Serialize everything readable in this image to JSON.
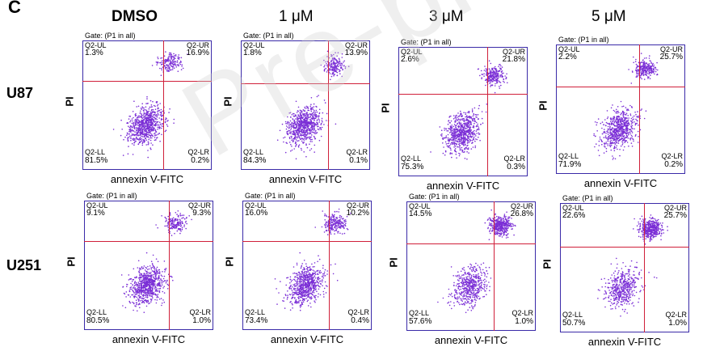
{
  "panel_letter": "C",
  "columns": [
    "DMSO",
    "1 μM",
    "3 μM",
    "5 μM"
  ],
  "rows": [
    "U87",
    "U251"
  ],
  "gate_text": "Gate: (P1 in all)",
  "quadrant_labels": {
    "ul": "Q2-UL",
    "ur": "Q2-UR",
    "ll": "Q2-LL",
    "lr": "Q2-LR"
  },
  "x_axis_label": "annexin V-FITC",
  "y_axis_label": "PI",
  "watermark": "Pre-proofs",
  "colors": {
    "dots": "#7b2fd6",
    "gate": "#d0203a",
    "frame": "#3a2aa8"
  },
  "plots": [
    {
      "row": "U87",
      "condition": "DMSO",
      "ul": "1.3%",
      "ur": "16.9%",
      "ll": "81.5%",
      "lr": "0.2%"
    },
    {
      "row": "U87",
      "condition": "1 μM",
      "ul": "1.8%",
      "ur": "13.9%",
      "ll": "84.3%",
      "lr": "0.1%"
    },
    {
      "row": "U87",
      "condition": "3 μM",
      "ul": "2.6%",
      "ur": "21.8%",
      "ll": "75.3%",
      "lr": "0.3%"
    },
    {
      "row": "U87",
      "condition": "5 μM",
      "ul": "2.2%",
      "ur": "25.7%",
      "ll": "71.9%",
      "lr": "0.2%"
    },
    {
      "row": "U251",
      "condition": "DMSO",
      "ul": "9.1%",
      "ur": "9.3%",
      "ll": "80.5%",
      "lr": "1.0%"
    },
    {
      "row": "U251",
      "condition": "1 μM",
      "ul": "16.0%",
      "ur": "10.2%",
      "ll": "73.4%",
      "lr": "0.4%"
    },
    {
      "row": "U251",
      "condition": "3 μM",
      "ul": "14.5%",
      "ur": "26.8%",
      "ll": "57.6%",
      "lr": "1.0%"
    },
    {
      "row": "U251",
      "condition": "5 μM",
      "ul": "22.6%",
      "ur": "25.7%",
      "ll": "50.7%",
      "lr": "1.0%"
    }
  ]
}
